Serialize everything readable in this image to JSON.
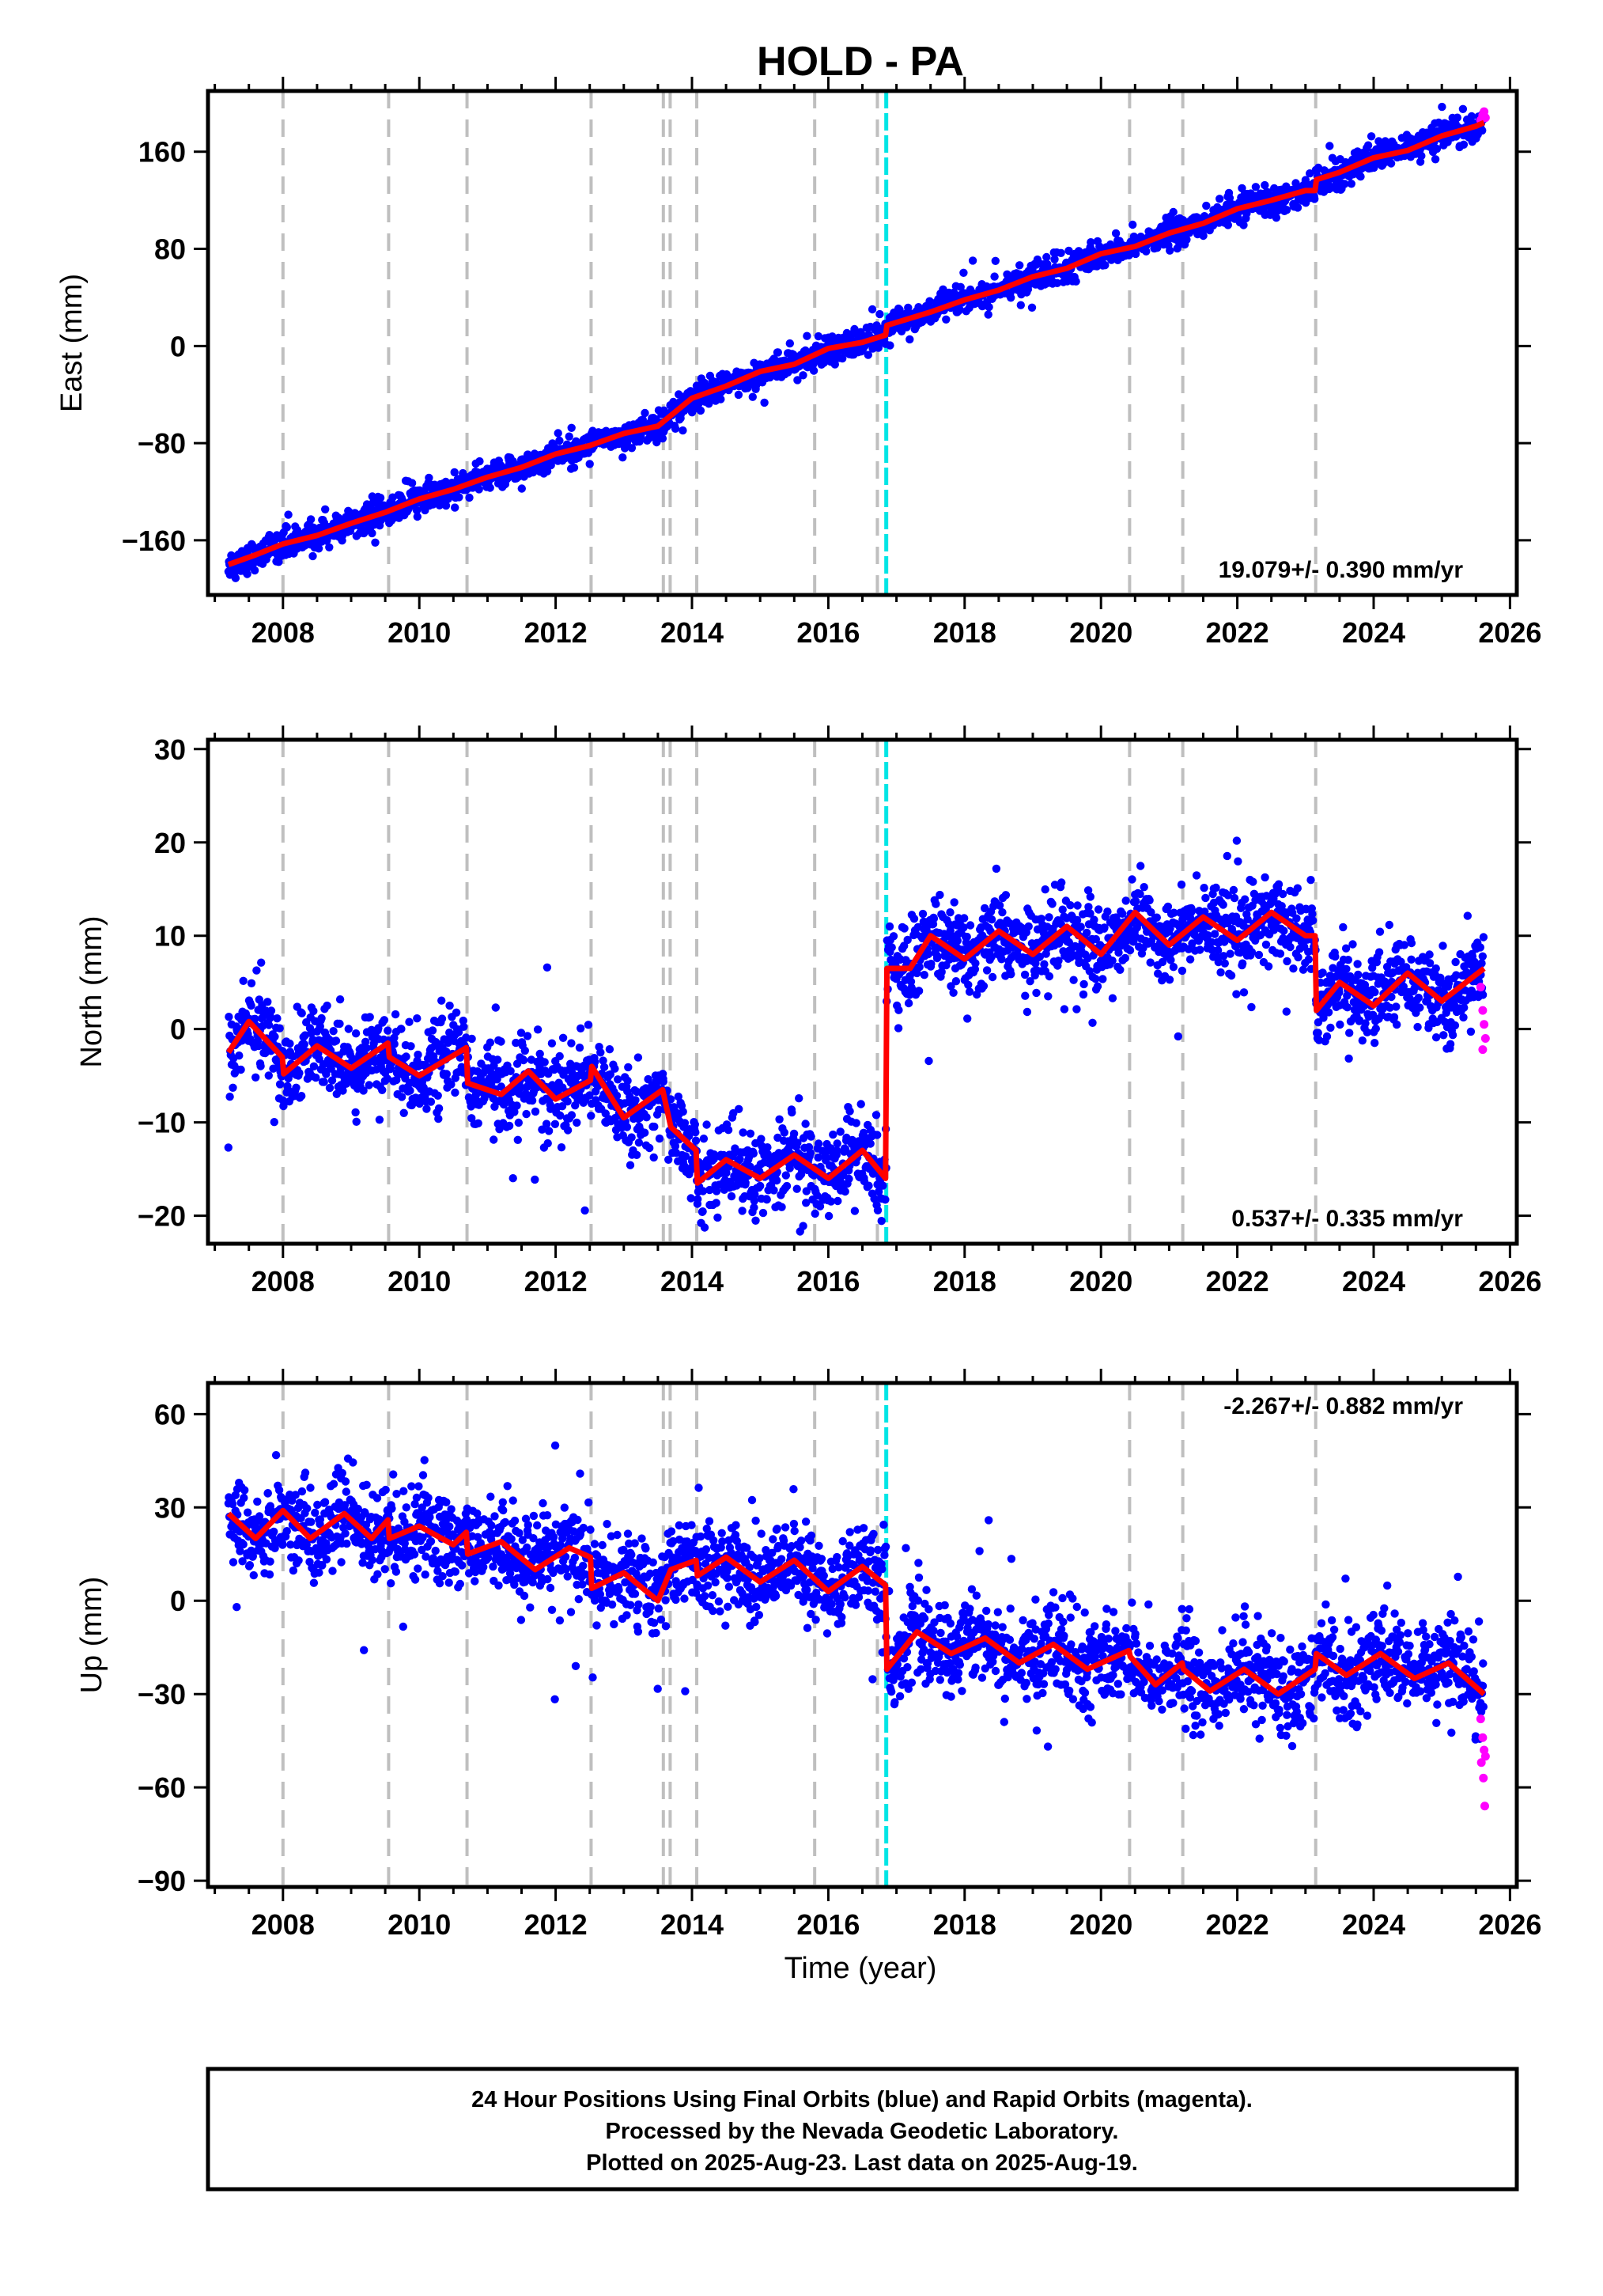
{
  "figure_title": "HOLD - PA",
  "x_axis_label": "Time (year)",
  "footer": {
    "line1": "24 Hour Positions Using Final Orbits (blue) and Rapid Orbits (magenta).",
    "line2": "Processed by the Nevada Geodetic Laboratory.",
    "line3": "Plotted on 2025-Aug-23. Last data on 2025-Aug-19."
  },
  "colors": {
    "final_orbits": "#0000ff",
    "rapid_orbits": "#ff00ff",
    "model": "#ff0000",
    "event_lines": "#bfbfbf",
    "cyan_line": "#00e5e5"
  },
  "chart_data": [
    {
      "type": "scatter",
      "panel": "east",
      "ylabel": "East (mm)",
      "rate_label": "19.079+/- 0.390 mm/yr",
      "xlim": [
        2006.9,
        2026.1
      ],
      "ylim": [
        -205,
        210
      ],
      "xticks": [
        2008,
        2010,
        2012,
        2014,
        2016,
        2018,
        2020,
        2022,
        2024,
        2026
      ],
      "yticks": [
        -160,
        -80,
        0,
        80,
        160
      ],
      "grid": false,
      "event_lines": [
        2008.0,
        2009.55,
        2010.7,
        2012.52,
        2013.58,
        2013.68,
        2014.07,
        2015.8,
        2016.72,
        2020.42,
        2021.2,
        2023.15
      ],
      "cyan_line": 2016.85,
      "series": [
        {
          "x": [
            2007.2,
            2007.6,
            2008.0,
            2008.5,
            2009.0,
            2009.5,
            2010.0,
            2010.5,
            2011.0,
            2011.5,
            2012.0,
            2012.5,
            2013.0,
            2013.5,
            2014.0,
            2014.5,
            2015.0,
            2015.5,
            2016.0,
            2016.5,
            2016.84,
            2016.86,
            2017.5,
            2018.0,
            2018.5,
            2019.0,
            2019.5,
            2020.0,
            2020.5,
            2021.0,
            2021.5,
            2022.0,
            2022.5,
            2023.0,
            2023.14,
            2023.16,
            2023.5,
            2024.0,
            2024.5,
            2025.0,
            2025.5,
            2025.62
          ],
          "model_y": [
            -180,
            -172,
            -163,
            -156,
            -146,
            -137,
            -126,
            -118,
            -108,
            -100,
            -89,
            -82,
            -72,
            -66,
            -43,
            -33,
            -21,
            -15,
            -2,
            3,
            9,
            17,
            28,
            38,
            46,
            57,
            64,
            76,
            82,
            93,
            101,
            113,
            120,
            128,
            128,
            137,
            143,
            155,
            161,
            173,
            181,
            184
          ],
          "scatter_sigma": 5.5
        },
        {
          "rapid_x": [
            2025.57,
            2025.6,
            2025.62,
            2025.64
          ],
          "rapid_y": [
            186,
            190,
            193,
            188
          ]
        }
      ]
    },
    {
      "type": "scatter",
      "panel": "north",
      "ylabel": "North (mm)",
      "rate_label": "0.537+/- 0.335 mm/yr",
      "xlim": [
        2006.9,
        2026.1
      ],
      "ylim": [
        -23,
        31
      ],
      "xticks": [
        2008,
        2010,
        2012,
        2014,
        2016,
        2018,
        2020,
        2022,
        2024,
        2026
      ],
      "yticks": [
        -20,
        -10,
        0,
        10,
        20,
        30
      ],
      "grid": false,
      "event_lines": [
        2008.0,
        2009.55,
        2010.7,
        2012.52,
        2013.58,
        2013.68,
        2014.07,
        2015.8,
        2016.72,
        2020.42,
        2021.2,
        2023.15
      ],
      "cyan_line": 2016.85,
      "series": [
        {
          "x": [
            2007.2,
            2007.5,
            2007.99,
            2008.01,
            2008.5,
            2009.0,
            2009.54,
            2009.56,
            2010.0,
            2010.69,
            2010.71,
            2011.2,
            2011.6,
            2012.0,
            2012.51,
            2012.53,
            2013.0,
            2013.57,
            2013.69,
            2014.06,
            2014.08,
            2014.5,
            2015.0,
            2015.5,
            2016.0,
            2016.5,
            2016.84,
            2016.86,
            2017.2,
            2017.5,
            2018.0,
            2018.5,
            2019.0,
            2019.5,
            2020.0,
            2020.5,
            2021.0,
            2021.5,
            2022.0,
            2022.5,
            2023.0,
            2023.14,
            2023.16,
            2023.5,
            2024.0,
            2024.5,
            2025.0,
            2025.62
          ],
          "model_y": [
            -2.5,
            0.8,
            -3.0,
            -4.8,
            -1.8,
            -4.2,
            -1.5,
            -3.0,
            -5.0,
            -2.0,
            -5.8,
            -7.0,
            -4.5,
            -7.5,
            -5.5,
            -4.0,
            -9.5,
            -6.5,
            -10.5,
            -13.0,
            -16.5,
            -14.0,
            -16.0,
            -13.5,
            -16.0,
            -13.0,
            -16.0,
            6.5,
            6.5,
            10.0,
            7.5,
            10.5,
            8.0,
            11.0,
            8.0,
            12.5,
            9.0,
            12.0,
            9.5,
            12.5,
            10.0,
            10.0,
            2.0,
            5.0,
            2.5,
            6.0,
            3.0,
            6.5
          ],
          "scatter_sigma": 2.2
        },
        {
          "rapid_x": [
            2025.57,
            2025.6,
            2025.62,
            2025.64,
            2025.6
          ],
          "rapid_y": [
            4.5,
            2.0,
            0.5,
            -1.0,
            -2.2
          ]
        }
      ]
    },
    {
      "type": "scatter",
      "panel": "up",
      "ylabel": "Up (mm)",
      "rate_label": "-2.267+/- 0.882 mm/yr",
      "xlim": [
        2006.9,
        2026.1
      ],
      "ylim": [
        -92,
        70
      ],
      "xticks": [
        2008,
        2010,
        2012,
        2014,
        2016,
        2018,
        2020,
        2022,
        2024,
        2026
      ],
      "yticks": [
        -90,
        -60,
        -30,
        0,
        30,
        60
      ],
      "grid": false,
      "event_lines": [
        2008.0,
        2009.55,
        2010.7,
        2012.52,
        2013.58,
        2013.68,
        2014.07,
        2015.8,
        2016.72,
        2020.42,
        2021.2,
        2023.15
      ],
      "cyan_line": 2016.85,
      "series": [
        {
          "x": [
            2007.2,
            2007.6,
            2008.0,
            2008.4,
            2008.9,
            2009.3,
            2009.54,
            2009.56,
            2010.0,
            2010.5,
            2010.69,
            2010.71,
            2011.2,
            2011.7,
            2012.2,
            2012.51,
            2012.53,
            2013.0,
            2013.5,
            2013.69,
            2014.06,
            2014.08,
            2014.5,
            2015.0,
            2015.5,
            2016.0,
            2016.5,
            2016.84,
            2016.86,
            2017.3,
            2017.8,
            2018.3,
            2018.8,
            2019.3,
            2019.8,
            2020.41,
            2020.43,
            2020.8,
            2021.19,
            2021.21,
            2021.6,
            2022.1,
            2022.6,
            2023.14,
            2023.16,
            2023.6,
            2024.1,
            2024.6,
            2025.1,
            2025.62
          ],
          "model_y": [
            28,
            20,
            29,
            20,
            28,
            20,
            26,
            20,
            24,
            18,
            22,
            15,
            19,
            10,
            17,
            14,
            4,
            9,
            0,
            10,
            13,
            8,
            14,
            6,
            13,
            3,
            11,
            5,
            -22,
            -10,
            -17,
            -12,
            -20,
            -14,
            -22,
            -16,
            -18,
            -27,
            -20,
            -22,
            -29,
            -22,
            -30,
            -22,
            -17,
            -24,
            -17,
            -25,
            -20,
            -30
          ],
          "scatter_sigma": 7.0
        },
        {
          "rapid_x": [
            2025.57,
            2025.6,
            2025.62,
            2025.64,
            2025.58,
            2025.61,
            2025.63
          ],
          "rapid_y": [
            -38,
            -44,
            -48,
            -50,
            -52,
            -57,
            -66
          ]
        }
      ]
    }
  ]
}
